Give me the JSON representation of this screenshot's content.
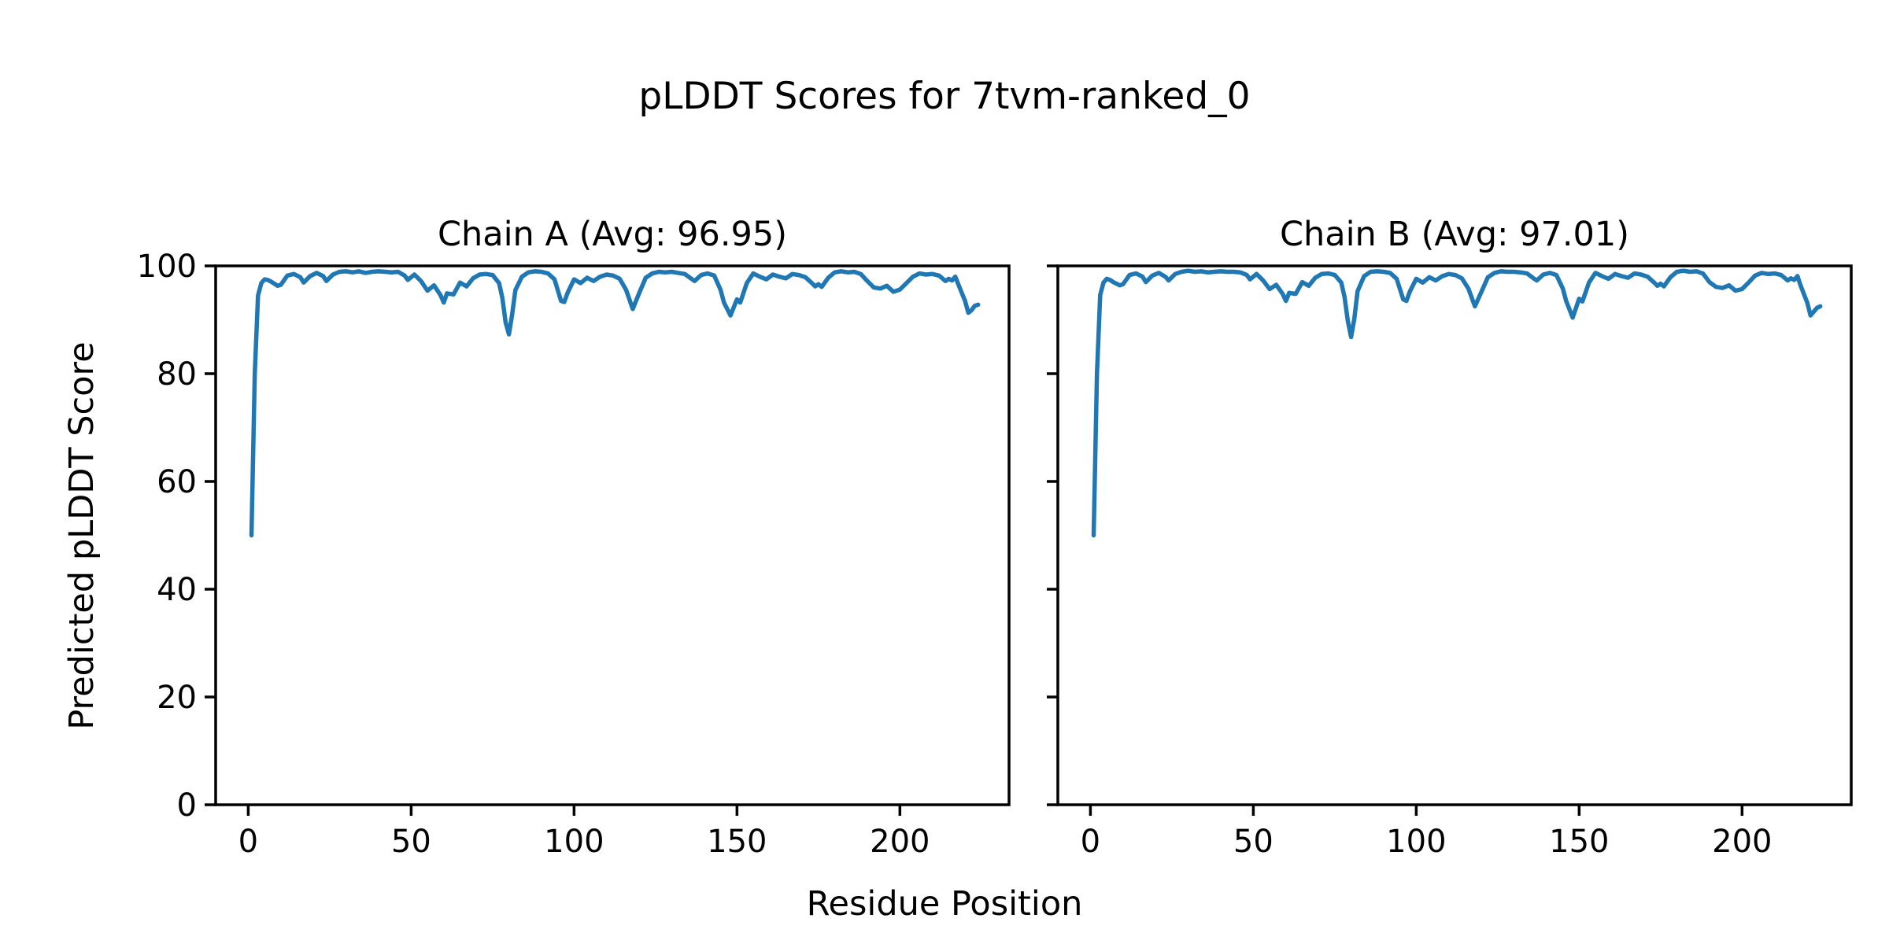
{
  "figure": {
    "suptitle": "pLDDT Scores for 7tvm-ranked_0",
    "xlabel": "Residue Position",
    "ylabel": "Predicted pLDDT Score",
    "background_color": "#ffffff",
    "text_color": "#000000",
    "line_color": "#1f77b4"
  },
  "chart_data": [
    {
      "type": "line",
      "title": "Chain A (Avg: 96.95)",
      "avg": 96.95,
      "xlabel": "Residue Position",
      "ylabel": "Predicted pLDDT Score",
      "xlim": [
        -10,
        233.5
      ],
      "ylim": [
        0,
        100
      ],
      "x_ticks": [
        0,
        50,
        100,
        150,
        200
      ],
      "y_ticks": [
        0,
        20,
        40,
        60,
        80,
        100
      ],
      "y_tick_labels_visible": true,
      "grid": false,
      "legend": "none",
      "line_color": "#1f77b4",
      "x": [
        1,
        2,
        3,
        4,
        5,
        6,
        7,
        9,
        10,
        12,
        14,
        16,
        17,
        19,
        21,
        23,
        24,
        26,
        28,
        30,
        32,
        34,
        36,
        38,
        40,
        42,
        44,
        46,
        48,
        49,
        51,
        53,
        55,
        57,
        59,
        60,
        61,
        63,
        65,
        67,
        69,
        71,
        73,
        75,
        77,
        78,
        79,
        80,
        81,
        82,
        84,
        86,
        88,
        90,
        92,
        94,
        96,
        97,
        98,
        100,
        102,
        104,
        106,
        108,
        110,
        112,
        114,
        116,
        118,
        120,
        122,
        124,
        126,
        128,
        130,
        132,
        134,
        136,
        137,
        139,
        141,
        143,
        145,
        146,
        148,
        150,
        151,
        153,
        155,
        157,
        159,
        161,
        163,
        165,
        167,
        169,
        171,
        173,
        174,
        175,
        176,
        178,
        180,
        182,
        184,
        186,
        188,
        190,
        192,
        194,
        196,
        198,
        200,
        202,
        204,
        206,
        208,
        210,
        212,
        214,
        215,
        216,
        217,
        218,
        220,
        221,
        222,
        223,
        224
      ],
      "values": [
        50.0,
        80.0,
        94.5,
        96.8,
        97.5,
        97.4,
        97.1,
        96.3,
        96.5,
        98.2,
        98.5,
        97.9,
        96.9,
        98.1,
        98.7,
        98.1,
        97.2,
        98.4,
        98.9,
        99.0,
        98.8,
        99.0,
        98.7,
        98.9,
        99.0,
        98.9,
        98.8,
        98.9,
        98.2,
        97.4,
        98.4,
        97.2,
        95.4,
        96.4,
        94.6,
        93.2,
        94.9,
        94.7,
        96.9,
        96.2,
        97.7,
        98.4,
        98.5,
        98.3,
        96.8,
        94.0,
        89.5,
        87.3,
        91.0,
        95.5,
        98.0,
        98.8,
        99.0,
        98.9,
        98.6,
        97.5,
        93.5,
        93.3,
        95.0,
        97.5,
        96.8,
        97.8,
        97.2,
        98.0,
        98.4,
        98.2,
        97.6,
        95.5,
        92.0,
        95.0,
        97.8,
        98.6,
        98.9,
        98.8,
        98.9,
        98.7,
        98.5,
        97.6,
        97.2,
        98.3,
        98.6,
        98.2,
        95.5,
        93.2,
        90.8,
        93.8,
        93.2,
        96.8,
        98.6,
        98.0,
        97.5,
        98.4,
        98.0,
        97.7,
        98.5,
        98.3,
        97.9,
        96.8,
        96.2,
        96.6,
        96.1,
        97.8,
        98.8,
        99.0,
        98.8,
        98.9,
        98.5,
        97.2,
        96.0,
        95.8,
        96.3,
        95.2,
        95.6,
        96.8,
        98.0,
        98.6,
        98.4,
        98.5,
        98.2,
        97.2,
        97.6,
        97.3,
        98.0,
        96.5,
        93.5,
        91.3,
        91.8,
        92.6,
        92.8
      ]
    },
    {
      "type": "line",
      "title": "Chain B (Avg: 97.01)",
      "avg": 97.01,
      "xlabel": "Residue Position",
      "ylabel": "Predicted pLDDT Score",
      "xlim": [
        -10,
        233.5
      ],
      "ylim": [
        0,
        100
      ],
      "x_ticks": [
        0,
        50,
        100,
        150,
        200
      ],
      "y_ticks": [
        0,
        20,
        40,
        60,
        80,
        100
      ],
      "y_tick_labels_visible": false,
      "grid": false,
      "legend": "none",
      "line_color": "#1f77b4",
      "x": [
        1,
        2,
        3,
        4,
        5,
        6,
        7,
        9,
        10,
        12,
        14,
        16,
        17,
        19,
        21,
        23,
        24,
        26,
        28,
        30,
        32,
        34,
        36,
        38,
        40,
        42,
        44,
        46,
        48,
        49,
        51,
        53,
        55,
        57,
        59,
        60,
        61,
        63,
        65,
        67,
        69,
        71,
        73,
        75,
        77,
        78,
        79,
        80,
        81,
        82,
        84,
        86,
        88,
        90,
        92,
        94,
        96,
        97,
        98,
        100,
        102,
        104,
        106,
        108,
        110,
        112,
        114,
        116,
        118,
        120,
        122,
        124,
        126,
        128,
        130,
        132,
        134,
        136,
        137,
        139,
        141,
        143,
        145,
        146,
        148,
        150,
        151,
        153,
        155,
        157,
        159,
        161,
        163,
        165,
        167,
        169,
        171,
        173,
        174,
        175,
        176,
        178,
        180,
        182,
        184,
        186,
        188,
        190,
        192,
        194,
        196,
        198,
        200,
        202,
        204,
        206,
        208,
        210,
        212,
        214,
        215,
        216,
        217,
        218,
        220,
        221,
        222,
        223,
        224
      ],
      "values": [
        50.0,
        80.0,
        94.6,
        96.9,
        97.6,
        97.4,
        97.0,
        96.4,
        96.6,
        98.3,
        98.6,
        98.0,
        97.0,
        98.2,
        98.7,
        98.0,
        97.3,
        98.5,
        98.9,
        99.1,
        98.9,
        99.0,
        98.8,
        98.9,
        99.0,
        98.9,
        98.9,
        98.8,
        98.3,
        97.5,
        98.5,
        97.3,
        95.7,
        96.5,
        94.8,
        93.5,
        95.0,
        94.8,
        97.0,
        96.3,
        97.8,
        98.5,
        98.6,
        98.3,
        96.9,
        94.2,
        89.8,
        86.8,
        90.2,
        95.3,
        98.1,
        98.9,
        99.0,
        98.9,
        98.7,
        97.6,
        93.8,
        93.5,
        95.2,
        97.6,
        96.9,
        97.9,
        97.3,
        98.1,
        98.5,
        98.3,
        97.7,
        95.8,
        92.5,
        95.2,
        97.9,
        98.7,
        99.0,
        98.9,
        98.9,
        98.8,
        98.6,
        97.7,
        97.3,
        98.4,
        98.7,
        98.3,
        95.8,
        93.5,
        90.4,
        93.9,
        93.4,
        96.9,
        98.7,
        98.1,
        97.6,
        98.5,
        98.1,
        97.8,
        98.6,
        98.4,
        98.0,
        96.9,
        96.3,
        96.7,
        96.2,
        97.9,
        98.9,
        99.1,
        98.9,
        99.0,
        98.6,
        97.0,
        96.1,
        95.9,
        96.4,
        95.4,
        95.7,
        96.9,
        98.2,
        98.7,
        98.5,
        98.6,
        98.3,
        97.3,
        97.7,
        97.4,
        98.1,
        96.3,
        93.2,
        90.8,
        91.5,
        92.2,
        92.5
      ]
    }
  ]
}
